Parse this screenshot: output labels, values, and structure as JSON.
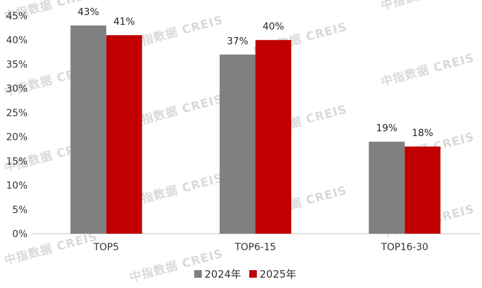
{
  "chart_data": {
    "type": "bar",
    "categories": [
      "TOP5",
      "TOP6-15",
      "TOP16-30"
    ],
    "series": [
      {
        "name": "2024年",
        "values": [
          43,
          37,
          19
        ],
        "color": "#808080"
      },
      {
        "name": "2025年",
        "values": [
          41,
          40,
          18
        ],
        "color": "#c00000"
      }
    ],
    "data_labels": [
      [
        "43%",
        "41%"
      ],
      [
        "37%",
        "40%"
      ],
      [
        "19%",
        "18%"
      ]
    ],
    "yticks": [
      "0%",
      "5%",
      "10%",
      "15%",
      "20%",
      "25%",
      "30%",
      "35%",
      "40%",
      "45%"
    ],
    "ylim": [
      0,
      45
    ],
    "y_step": 5,
    "grid": false,
    "legend_position": "bottom"
  },
  "watermark": "中指数据 CREIS"
}
